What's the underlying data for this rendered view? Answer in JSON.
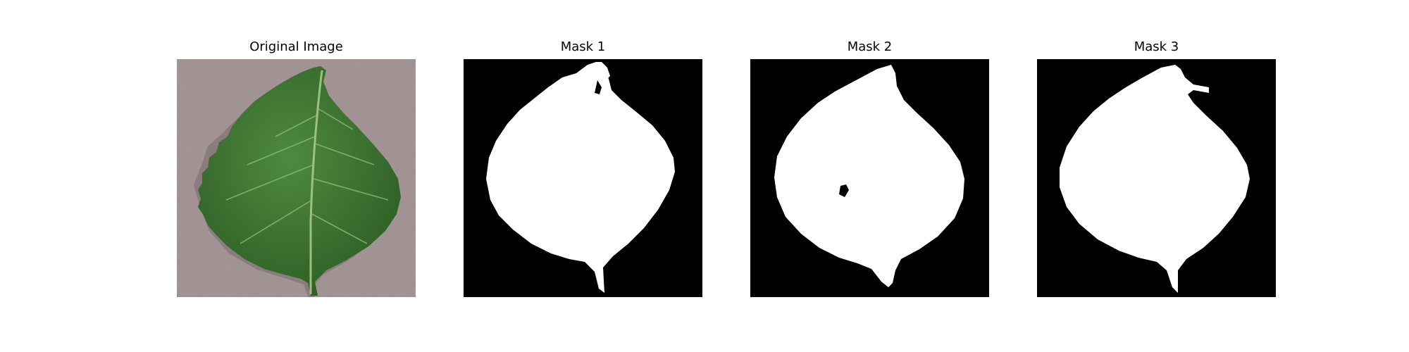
{
  "panels": [
    {
      "title": "Original Image",
      "kind": "photo"
    },
    {
      "title": "Mask 1",
      "kind": "mask"
    },
    {
      "title": "Mask 2",
      "kind": "mask"
    },
    {
      "title": "Mask 3",
      "kind": "mask"
    }
  ],
  "colors": {
    "background": "#ffffff",
    "mask_fg": "#ffffff",
    "mask_bg": "#000000",
    "leaf": "#3f7a35",
    "leaf_shadow": "#2f5f28",
    "vein": "#a7c98a",
    "surface": "#a8999a"
  }
}
